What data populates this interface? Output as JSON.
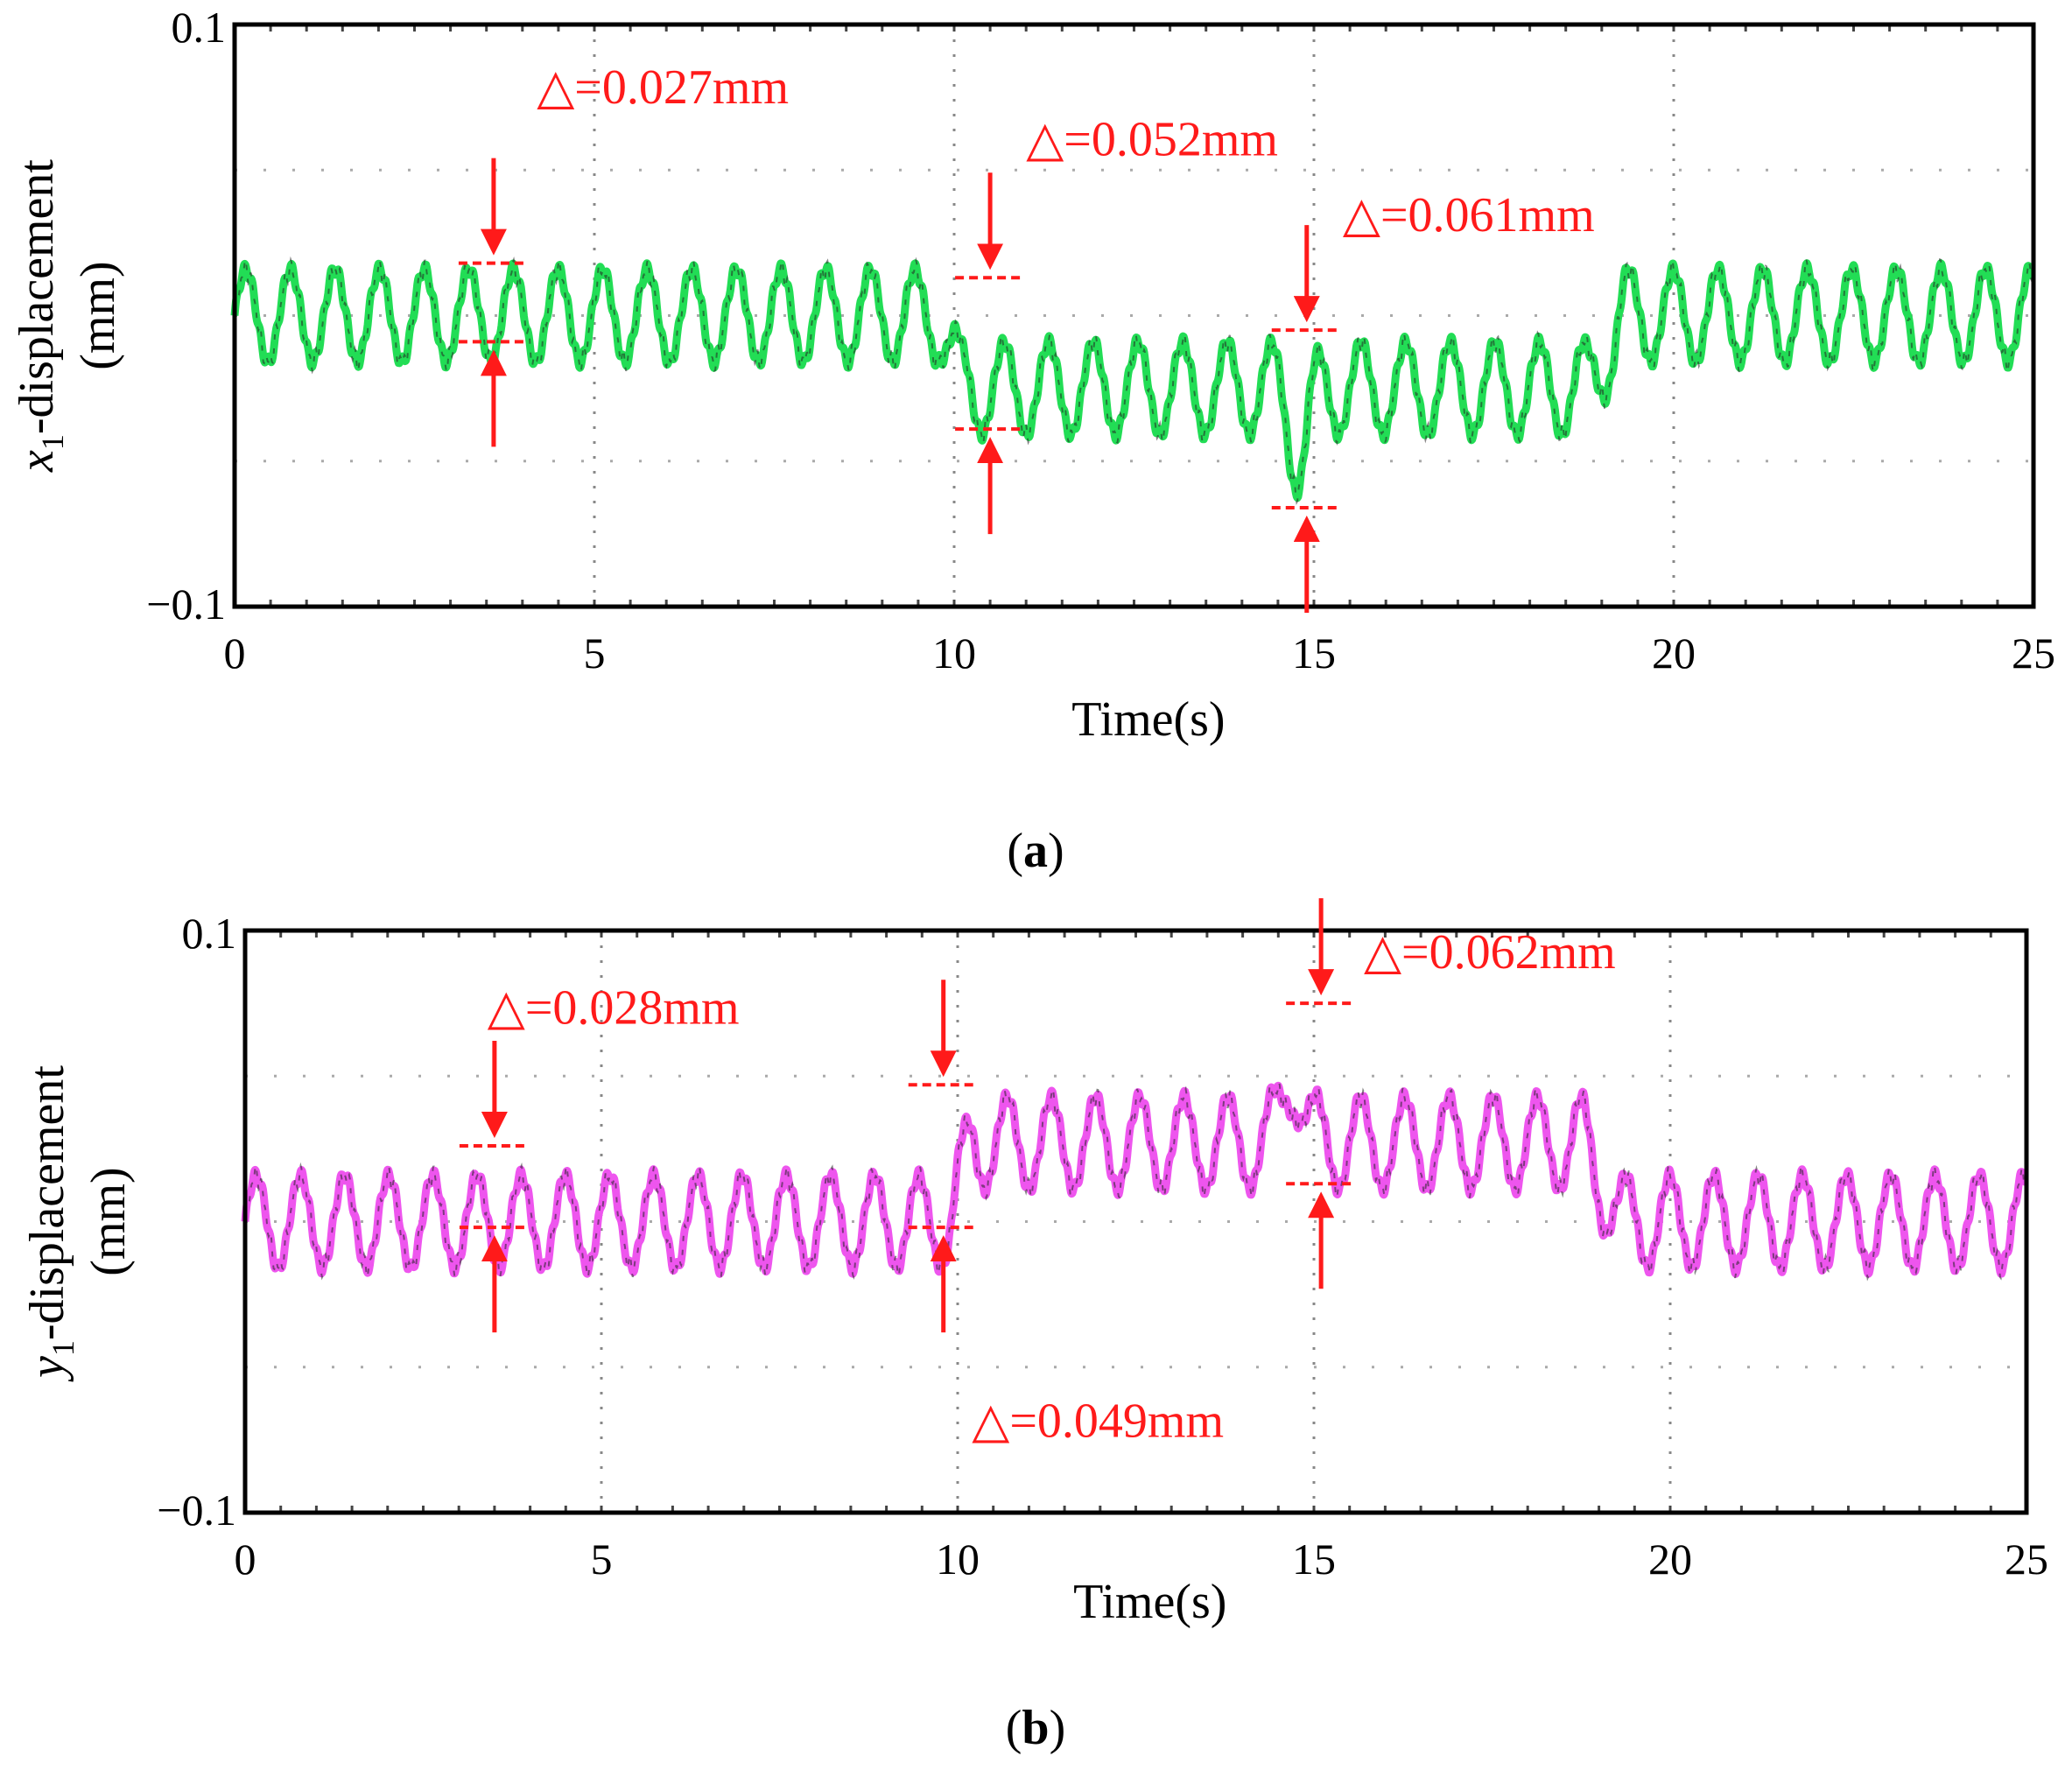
{
  "chart_data": [
    {
      "type": "line",
      "panel_label": "a",
      "xlabel": "Time(s)",
      "ylabel_var": "x",
      "ylabel_sub": "1",
      "ylabel_rest": "-displacement",
      "ylabel_unit": "(mm)",
      "xlim": [
        0,
        25
      ],
      "ylim": [
        -0.1,
        0.1
      ],
      "xticks": [
        "0",
        "5",
        "10",
        "15",
        "20",
        "25"
      ],
      "yticks": [
        "0.1",
        "−0.1"
      ],
      "grid": true,
      "line_color": "#22dd55",
      "baseline": [
        [
          0,
          0.0
        ],
        [
          9.8,
          0.0
        ],
        [
          10.1,
          -0.025
        ],
        [
          18.8,
          -0.025
        ],
        [
          19.3,
          0.0
        ],
        [
          25,
          0.0
        ]
      ],
      "amplitude": 0.016,
      "period": 0.62,
      "spike": {
        "t": 14.8,
        "height": -0.022
      },
      "annotations": [
        {
          "label": "△=0.027mm",
          "x": 3.6,
          "top": 0.018,
          "bottom": -0.009,
          "text_x": 4.2,
          "text_y": 0.073
        },
        {
          "label": "△=0.052mm",
          "x": 10.5,
          "top": 0.013,
          "bottom": -0.039,
          "text_x": 11.0,
          "text_y": 0.055
        },
        {
          "label": "△=0.061mm",
          "x": 14.9,
          "top": -0.005,
          "bottom": -0.066,
          "text_x": 15.4,
          "text_y": 0.029
        }
      ]
    },
    {
      "type": "line",
      "panel_label": "b",
      "xlabel": "Time(s)",
      "ylabel_var": "y",
      "ylabel_sub": "1",
      "ylabel_rest": "-displacement",
      "ylabel_unit": "(mm)",
      "xlim": [
        0,
        25
      ],
      "ylim": [
        -0.1,
        0.1
      ],
      "xticks": [
        "0",
        "5",
        "10",
        "15",
        "20",
        "25"
      ],
      "yticks": [
        "0.1",
        "−0.1"
      ],
      "grid": true,
      "line_color": "#ee55ee",
      "baseline": [
        [
          0,
          0.0
        ],
        [
          9.9,
          0.0
        ],
        [
          10.2,
          0.027
        ],
        [
          18.8,
          0.027
        ],
        [
          19.3,
          0.0
        ],
        [
          25,
          0.0
        ]
      ],
      "amplitude": 0.016,
      "period": 0.62,
      "spike": {
        "t": 14.7,
        "height": 0.025
      },
      "annotations": [
        {
          "label": "△=0.028mm",
          "x": 3.5,
          "top": 0.026,
          "bottom": -0.002,
          "text_x": 3.4,
          "text_y": 0.068
        },
        {
          "label": "△=0.049mm",
          "x": 9.8,
          "top": 0.047,
          "bottom": -0.002,
          "text_x": 10.2,
          "text_y": -0.074
        },
        {
          "label": "△=0.062mm",
          "x": 15.1,
          "top": 0.075,
          "bottom": 0.013,
          "text_x": 15.7,
          "text_y": 0.087
        }
      ]
    }
  ]
}
